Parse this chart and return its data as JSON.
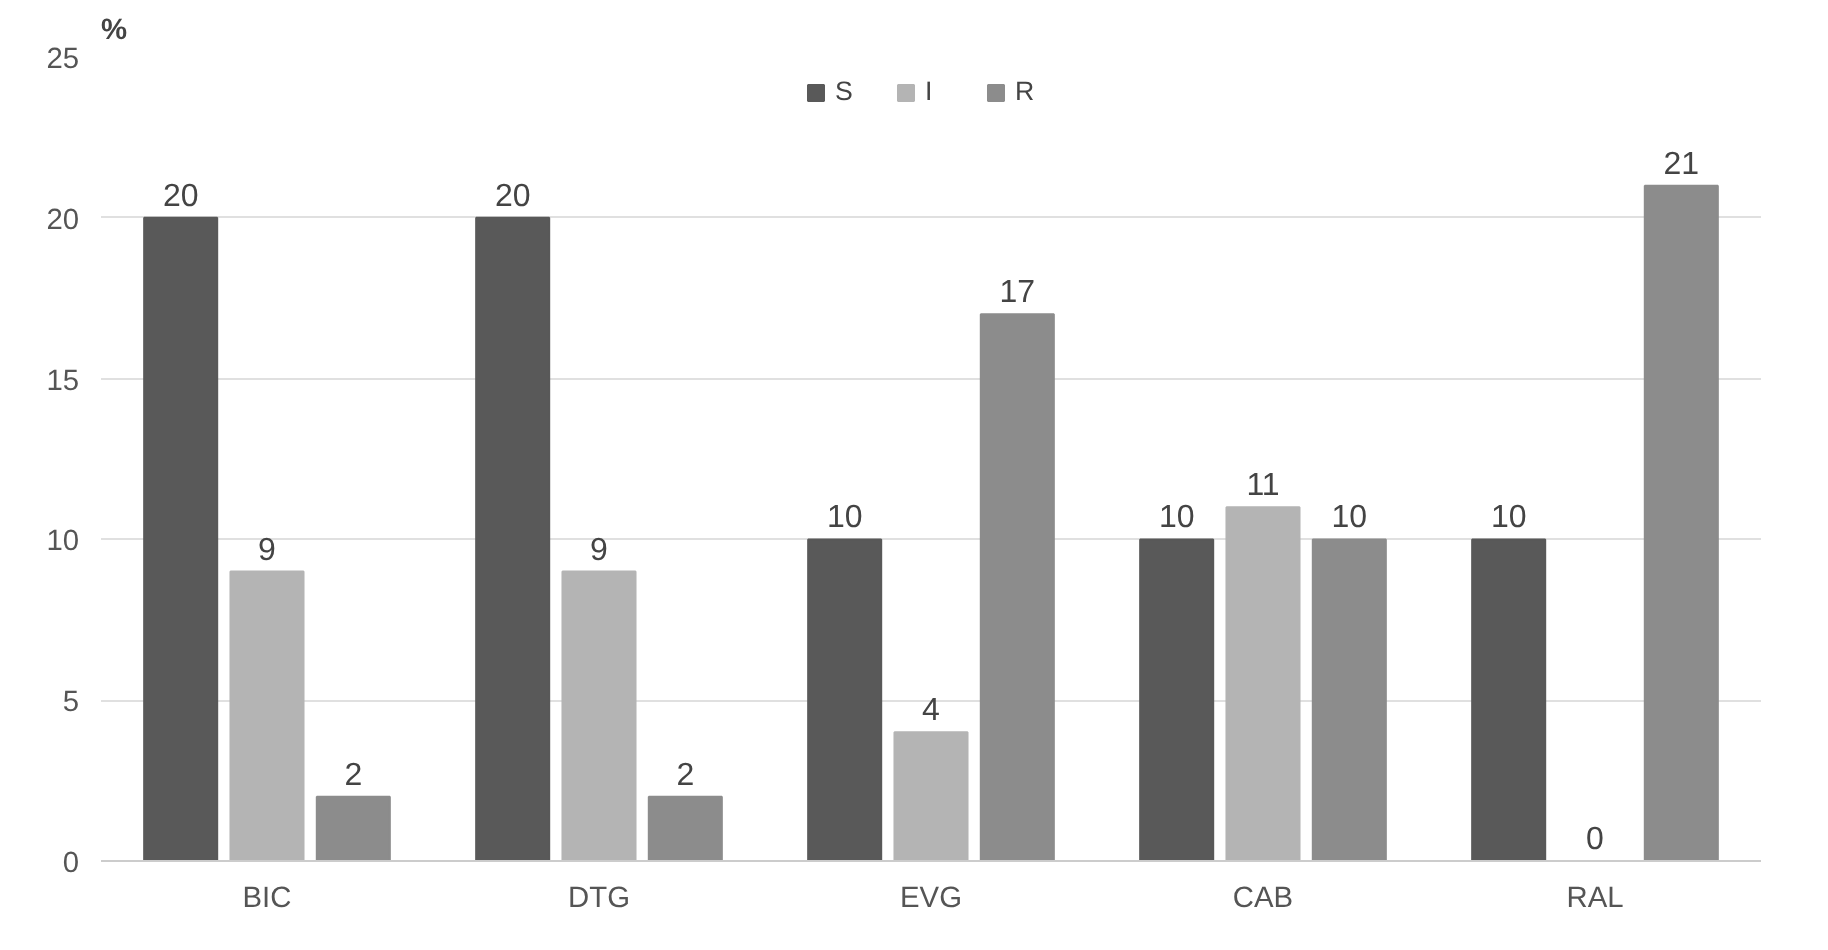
{
  "chart_data": {
    "type": "bar",
    "ylabel": "%",
    "categories": [
      "BIC",
      "DTG",
      "EVG",
      "CAB",
      "RAL"
    ],
    "series": [
      {
        "name": "S",
        "color": "#595959",
        "values": [
          20,
          20,
          10,
          10,
          10
        ]
      },
      {
        "name": "I",
        "color": "#b4b4b4",
        "values": [
          9,
          9,
          4,
          11,
          0
        ]
      },
      {
        "name": "R",
        "color": "#8c8c8c",
        "values": [
          2,
          2,
          17,
          10,
          21
        ]
      }
    ],
    "ylim": [
      0,
      25
    ],
    "yticks": [
      0,
      5,
      10,
      15,
      20,
      25
    ],
    "grid": "y",
    "legend": "top",
    "data_labels": true
  }
}
